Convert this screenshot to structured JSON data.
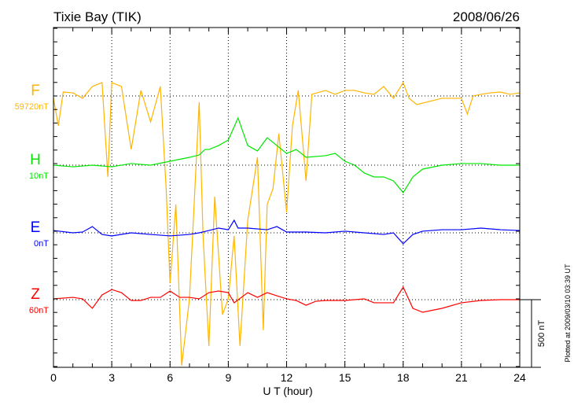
{
  "chart_data": {
    "type": "line",
    "title": "Tixie Bay (TIK)",
    "date": "2008/06/26",
    "xlabel": "U T (hour)",
    "xlim": [
      0,
      24
    ],
    "xticks": [
      "0",
      "3",
      "6",
      "9",
      "12",
      "15",
      "18",
      "21",
      "24"
    ],
    "scale_bar_label": "500 nT",
    "scale_bar_value_nT": 500,
    "plotted_note": "Plotted at 2009/03/10 03:39 UT",
    "series": [
      {
        "name": "F",
        "baseline_label": "59720nT",
        "color": "#ffb400",
        "x": [
          0,
          0.25,
          0.5,
          1,
          1.5,
          2,
          2.5,
          2.8,
          3,
          3.5,
          4,
          4.5,
          5,
          5.5,
          5.8,
          6,
          6.3,
          6.6,
          7,
          7.5,
          7.7,
          8,
          8.3,
          8.7,
          9,
          9.3,
          9.6,
          10,
          10.5,
          10.8,
          11,
          11.3,
          11.6,
          12,
          12.3,
          12.6,
          13,
          13.3,
          14,
          14.5,
          15,
          15.5,
          16,
          16.5,
          17,
          17.5,
          18,
          18.3,
          18.7,
          19.5,
          20,
          21,
          21.3,
          21.6,
          22,
          22.5,
          23,
          23.5,
          24
        ],
        "y": [
          -17,
          -221,
          29,
          23,
          -17,
          70,
          99,
          -598,
          99,
          70,
          -395,
          41,
          -192,
          70,
          -685,
          -1383,
          -802,
          -1993,
          -1500,
          -46,
          -1034,
          -1848,
          -744,
          -1615,
          -1500,
          -1034,
          -1848,
          -918,
          -453,
          -1731,
          -802,
          -685,
          -279,
          -860,
          -221,
          41,
          -627,
          12,
          41,
          12,
          41,
          41,
          23,
          12,
          70,
          -17,
          99,
          -17,
          -64,
          -35,
          -17,
          -17,
          -133,
          0,
          12,
          23,
          29,
          12,
          23
        ]
      },
      {
        "name": "H",
        "baseline_label": "10nT",
        "color": "#00e600",
        "x": [
          0,
          1,
          2,
          3,
          4,
          5,
          6,
          7,
          7.5,
          7.8,
          8,
          8.5,
          9,
          9.5,
          10,
          10.5,
          11,
          11.5,
          12,
          12.5,
          13,
          14,
          14.5,
          15,
          15.5,
          16,
          16.5,
          17,
          17.5,
          18,
          18.5,
          19,
          20,
          21,
          22,
          23,
          24
        ],
        "y": [
          0,
          -12,
          0,
          -12,
          12,
          0,
          29,
          58,
          75,
          116,
          116,
          145,
          186,
          349,
          145,
          105,
          203,
          145,
          87,
          116,
          58,
          70,
          87,
          29,
          0,
          -58,
          -87,
          -87,
          -116,
          -203,
          -87,
          -29,
          0,
          12,
          12,
          0,
          0
        ]
      },
      {
        "name": "E",
        "baseline_label": "0nT",
        "color": "#0000ff",
        "x": [
          0,
          1,
          1.5,
          2,
          2.5,
          3,
          4,
          5,
          6,
          7,
          7.5,
          8,
          8.5,
          9,
          9.3,
          9.5,
          10,
          11,
          11.5,
          12,
          13,
          14,
          15,
          16,
          17,
          17.5,
          18,
          18.5,
          19,
          20,
          21,
          22,
          23,
          24
        ],
        "y": [
          17,
          0,
          6,
          46,
          -12,
          -23,
          0,
          -12,
          -23,
          -12,
          0,
          17,
          35,
          23,
          93,
          35,
          35,
          23,
          46,
          6,
          6,
          0,
          12,
          0,
          -12,
          0,
          -81,
          -12,
          12,
          23,
          23,
          35,
          23,
          17
        ]
      },
      {
        "name": "Z",
        "baseline_label": "60nT",
        "color": "#ff0000",
        "x": [
          0,
          1,
          1.5,
          2,
          2.5,
          3,
          3.5,
          4,
          4.5,
          5,
          5.5,
          6,
          6.5,
          7,
          7.5,
          8,
          8.5,
          9,
          9.3,
          10,
          10.5,
          11,
          11.5,
          12,
          12.5,
          13,
          13.5,
          14,
          15,
          16,
          16.5,
          17,
          17.5,
          18,
          18.5,
          19,
          20,
          21,
          22,
          23,
          24
        ],
        "y": [
          6,
          17,
          6,
          -64,
          35,
          75,
          52,
          -6,
          -6,
          17,
          17,
          64,
          17,
          17,
          6,
          52,
          64,
          52,
          -23,
          52,
          17,
          52,
          29,
          6,
          -6,
          -41,
          -12,
          -6,
          -6,
          6,
          -23,
          -23,
          -23,
          93,
          -64,
          -93,
          -64,
          -23,
          -6,
          0,
          0
        ]
      }
    ]
  }
}
